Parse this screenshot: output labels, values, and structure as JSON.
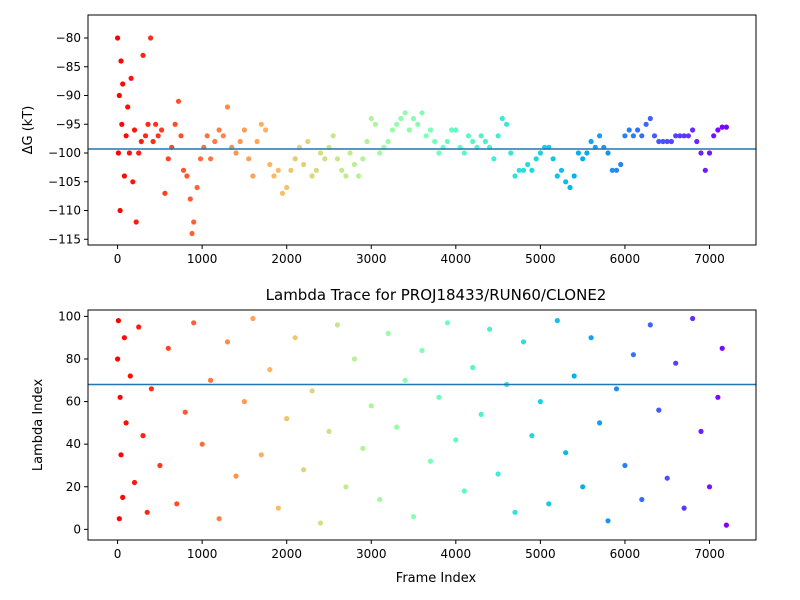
{
  "chart_data": [
    {
      "type": "scatter",
      "title": "",
      "xlabel": "",
      "ylabel": "ΔG (kT)",
      "xlim": [
        -350,
        7550
      ],
      "ylim": [
        -116,
        -76
      ],
      "xticks": [
        0,
        1000,
        2000,
        3000,
        4000,
        5000,
        6000,
        7000
      ],
      "yticks": [
        -115,
        -110,
        -105,
        -100,
        -95,
        -90,
        -85,
        -80
      ],
      "hline": -99.3,
      "hline_color": "#1f77b4",
      "colormap": "rainbow (red at frame 0 → violet at last frame)",
      "grid": false,
      "legend": "none",
      "series": [
        {
          "points": [
            [
              0,
              -80
            ],
            [
              10,
              -100
            ],
            [
              20,
              -90
            ],
            [
              30,
              -110
            ],
            [
              40,
              -84
            ],
            [
              50,
              -95
            ],
            [
              60,
              -88
            ],
            [
              80,
              -104
            ],
            [
              100,
              -97
            ],
            [
              120,
              -92
            ],
            [
              140,
              -100
            ],
            [
              160,
              -87
            ],
            [
              180,
              -105
            ],
            [
              200,
              -96
            ],
            [
              220,
              -112
            ],
            [
              250,
              -100
            ],
            [
              280,
              -98
            ],
            [
              300,
              -83
            ],
            [
              330,
              -97
            ],
            [
              360,
              -95
            ],
            [
              390,
              -80
            ],
            [
              420,
              -98
            ],
            [
              450,
              -95
            ],
            [
              480,
              -97
            ],
            [
              520,
              -96
            ],
            [
              560,
              -107
            ],
            [
              600,
              -101
            ],
            [
              640,
              -99
            ],
            [
              680,
              -95
            ],
            [
              720,
              -91
            ],
            [
              750,
              -97
            ],
            [
              780,
              -103
            ],
            [
              820,
              -104
            ],
            [
              860,
              -108
            ],
            [
              880,
              -114
            ],
            [
              900,
              -112
            ],
            [
              940,
              -106
            ],
            [
              980,
              -101
            ],
            [
              1020,
              -99
            ],
            [
              1060,
              -97
            ],
            [
              1100,
              -101
            ],
            [
              1150,
              -98
            ],
            [
              1200,
              -96
            ],
            [
              1250,
              -97
            ],
            [
              1300,
              -92
            ],
            [
              1350,
              -99
            ],
            [
              1400,
              -100
            ],
            [
              1450,
              -98
            ],
            [
              1500,
              -96
            ],
            [
              1550,
              -101
            ],
            [
              1600,
              -104
            ],
            [
              1650,
              -98
            ],
            [
              1700,
              -95
            ],
            [
              1750,
              -96
            ],
            [
              1800,
              -102
            ],
            [
              1850,
              -104
            ],
            [
              1900,
              -103
            ],
            [
              1950,
              -107
            ],
            [
              2000,
              -106
            ],
            [
              2050,
              -103
            ],
            [
              2100,
              -101
            ],
            [
              2150,
              -99
            ],
            [
              2200,
              -102
            ],
            [
              2250,
              -98
            ],
            [
              2300,
              -104
            ],
            [
              2350,
              -103
            ],
            [
              2400,
              -100
            ],
            [
              2450,
              -101
            ],
            [
              2500,
              -99
            ],
            [
              2550,
              -97
            ],
            [
              2600,
              -101
            ],
            [
              2650,
              -103
            ],
            [
              2700,
              -104
            ],
            [
              2750,
              -100
            ],
            [
              2800,
              -102
            ],
            [
              2850,
              -104
            ],
            [
              2900,
              -101
            ],
            [
              2950,
              -98
            ],
            [
              3000,
              -94
            ],
            [
              3050,
              -95
            ],
            [
              3100,
              -100
            ],
            [
              3150,
              -99
            ],
            [
              3200,
              -98
            ],
            [
              3250,
              -96
            ],
            [
              3300,
              -95
            ],
            [
              3350,
              -94
            ],
            [
              3400,
              -93
            ],
            [
              3450,
              -96
            ],
            [
              3500,
              -94
            ],
            [
              3550,
              -95
            ],
            [
              3600,
              -93
            ],
            [
              3650,
              -97
            ],
            [
              3700,
              -96
            ],
            [
              3750,
              -98
            ],
            [
              3800,
              -100
            ],
            [
              3850,
              -99
            ],
            [
              3900,
              -98
            ],
            [
              3950,
              -96
            ],
            [
              4000,
              -96
            ],
            [
              4050,
              -99
            ],
            [
              4100,
              -100
            ],
            [
              4150,
              -97
            ],
            [
              4200,
              -98
            ],
            [
              4250,
              -99
            ],
            [
              4300,
              -97
            ],
            [
              4350,
              -98
            ],
            [
              4400,
              -99
            ],
            [
              4450,
              -101
            ],
            [
              4500,
              -97
            ],
            [
              4550,
              -94
            ],
            [
              4600,
              -95
            ],
            [
              4650,
              -100
            ],
            [
              4700,
              -104
            ],
            [
              4750,
              -103
            ],
            [
              4800,
              -103
            ],
            [
              4850,
              -102
            ],
            [
              4900,
              -103
            ],
            [
              4950,
              -101
            ],
            [
              5000,
              -100
            ],
            [
              5050,
              -99
            ],
            [
              5100,
              -99
            ],
            [
              5150,
              -101
            ],
            [
              5200,
              -104
            ],
            [
              5250,
              -103
            ],
            [
              5300,
              -105
            ],
            [
              5350,
              -106
            ],
            [
              5400,
              -104
            ],
            [
              5450,
              -100
            ],
            [
              5500,
              -101
            ],
            [
              5550,
              -100
            ],
            [
              5600,
              -98
            ],
            [
              5650,
              -99
            ],
            [
              5700,
              -97
            ],
            [
              5750,
              -99
            ],
            [
              5800,
              -100
            ],
            [
              5850,
              -103
            ],
            [
              5900,
              -103
            ],
            [
              5950,
              -102
            ],
            [
              6000,
              -97
            ],
            [
              6050,
              -96
            ],
            [
              6100,
              -97
            ],
            [
              6150,
              -96
            ],
            [
              6200,
              -97
            ],
            [
              6250,
              -95
            ],
            [
              6300,
              -94
            ],
            [
              6350,
              -97
            ],
            [
              6400,
              -98
            ],
            [
              6450,
              -98
            ],
            [
              6500,
              -98
            ],
            [
              6550,
              -98
            ],
            [
              6600,
              -97
            ],
            [
              6650,
              -97
            ],
            [
              6700,
              -97
            ],
            [
              6750,
              -97
            ],
            [
              6800,
              -96
            ],
            [
              6850,
              -98
            ],
            [
              6900,
              -100
            ],
            [
              6950,
              -103
            ],
            [
              7000,
              -100
            ],
            [
              7050,
              -97
            ],
            [
              7100,
              -96
            ],
            [
              7150,
              -95.5
            ],
            [
              7200,
              -95.5
            ]
          ]
        }
      ]
    },
    {
      "type": "scatter",
      "title": "Lambda Trace for PROJ18433/RUN60/CLONE2",
      "xlabel": "Frame Index",
      "ylabel": "Lambda Index",
      "xlim": [
        -350,
        7550
      ],
      "ylim": [
        -5,
        103
      ],
      "xticks": [
        0,
        1000,
        2000,
        3000,
        4000,
        5000,
        6000,
        7000
      ],
      "yticks": [
        0,
        20,
        40,
        60,
        80,
        100
      ],
      "hline": 68,
      "hline_color": "#1f77b4",
      "colormap": "rainbow (red at frame 0 → violet at last frame)",
      "grid": false,
      "legend": "none",
      "series": [
        {
          "description_of_distribution": "dense random scatter of lambda indices between 0 and 100 across frames 0–7200, with vertical banding",
          "points": [
            [
              0,
              80
            ],
            [
              10,
              98
            ],
            [
              20,
              5
            ],
            [
              30,
              62
            ],
            [
              40,
              35
            ],
            [
              60,
              15
            ],
            [
              80,
              90
            ],
            [
              100,
              50
            ],
            [
              150,
              72
            ],
            [
              200,
              22
            ],
            [
              250,
              95
            ],
            [
              300,
              44
            ],
            [
              350,
              8
            ],
            [
              400,
              66
            ],
            [
              500,
              30
            ],
            [
              600,
              85
            ],
            [
              700,
              12
            ],
            [
              800,
              55
            ],
            [
              900,
              97
            ],
            [
              1000,
              40
            ],
            [
              1100,
              70
            ],
            [
              1200,
              5
            ],
            [
              1300,
              88
            ],
            [
              1400,
              25
            ],
            [
              1500,
              60
            ],
            [
              1600,
              99
            ],
            [
              1700,
              35
            ],
            [
              1800,
              75
            ],
            [
              1900,
              10
            ],
            [
              2000,
              52
            ],
            [
              2100,
              90
            ],
            [
              2200,
              28
            ],
            [
              2300,
              65
            ],
            [
              2400,
              3
            ],
            [
              2500,
              46
            ],
            [
              2600,
              96
            ],
            [
              2700,
              20
            ],
            [
              2800,
              80
            ],
            [
              2900,
              38
            ],
            [
              3000,
              58
            ],
            [
              3100,
              14
            ],
            [
              3200,
              92
            ],
            [
              3300,
              48
            ],
            [
              3400,
              70
            ],
            [
              3500,
              6
            ],
            [
              3600,
              84
            ],
            [
              3700,
              32
            ],
            [
              3800,
              62
            ],
            [
              3900,
              97
            ],
            [
              4000,
              42
            ],
            [
              4100,
              18
            ],
            [
              4200,
              76
            ],
            [
              4300,
              54
            ],
            [
              4400,
              94
            ],
            [
              4500,
              26
            ],
            [
              4600,
              68
            ],
            [
              4700,
              8
            ],
            [
              4800,
              88
            ],
            [
              4900,
              44
            ],
            [
              5000,
              60
            ],
            [
              5100,
              12
            ],
            [
              5200,
              98
            ],
            [
              5300,
              36
            ],
            [
              5400,
              72
            ],
            [
              5500,
              20
            ],
            [
              5600,
              90
            ],
            [
              5700,
              50
            ],
            [
              5800,
              4
            ],
            [
              5900,
              66
            ],
            [
              6000,
              30
            ],
            [
              6100,
              82
            ],
            [
              6200,
              14
            ],
            [
              6300,
              96
            ],
            [
              6400,
              56
            ],
            [
              6500,
              24
            ],
            [
              6600,
              78
            ],
            [
              6700,
              10
            ],
            [
              6800,
              99
            ],
            [
              6900,
              46
            ],
            [
              7000,
              20
            ],
            [
              7100,
              62
            ],
            [
              7150,
              85
            ],
            [
              7200,
              2
            ]
          ]
        }
      ]
    }
  ]
}
